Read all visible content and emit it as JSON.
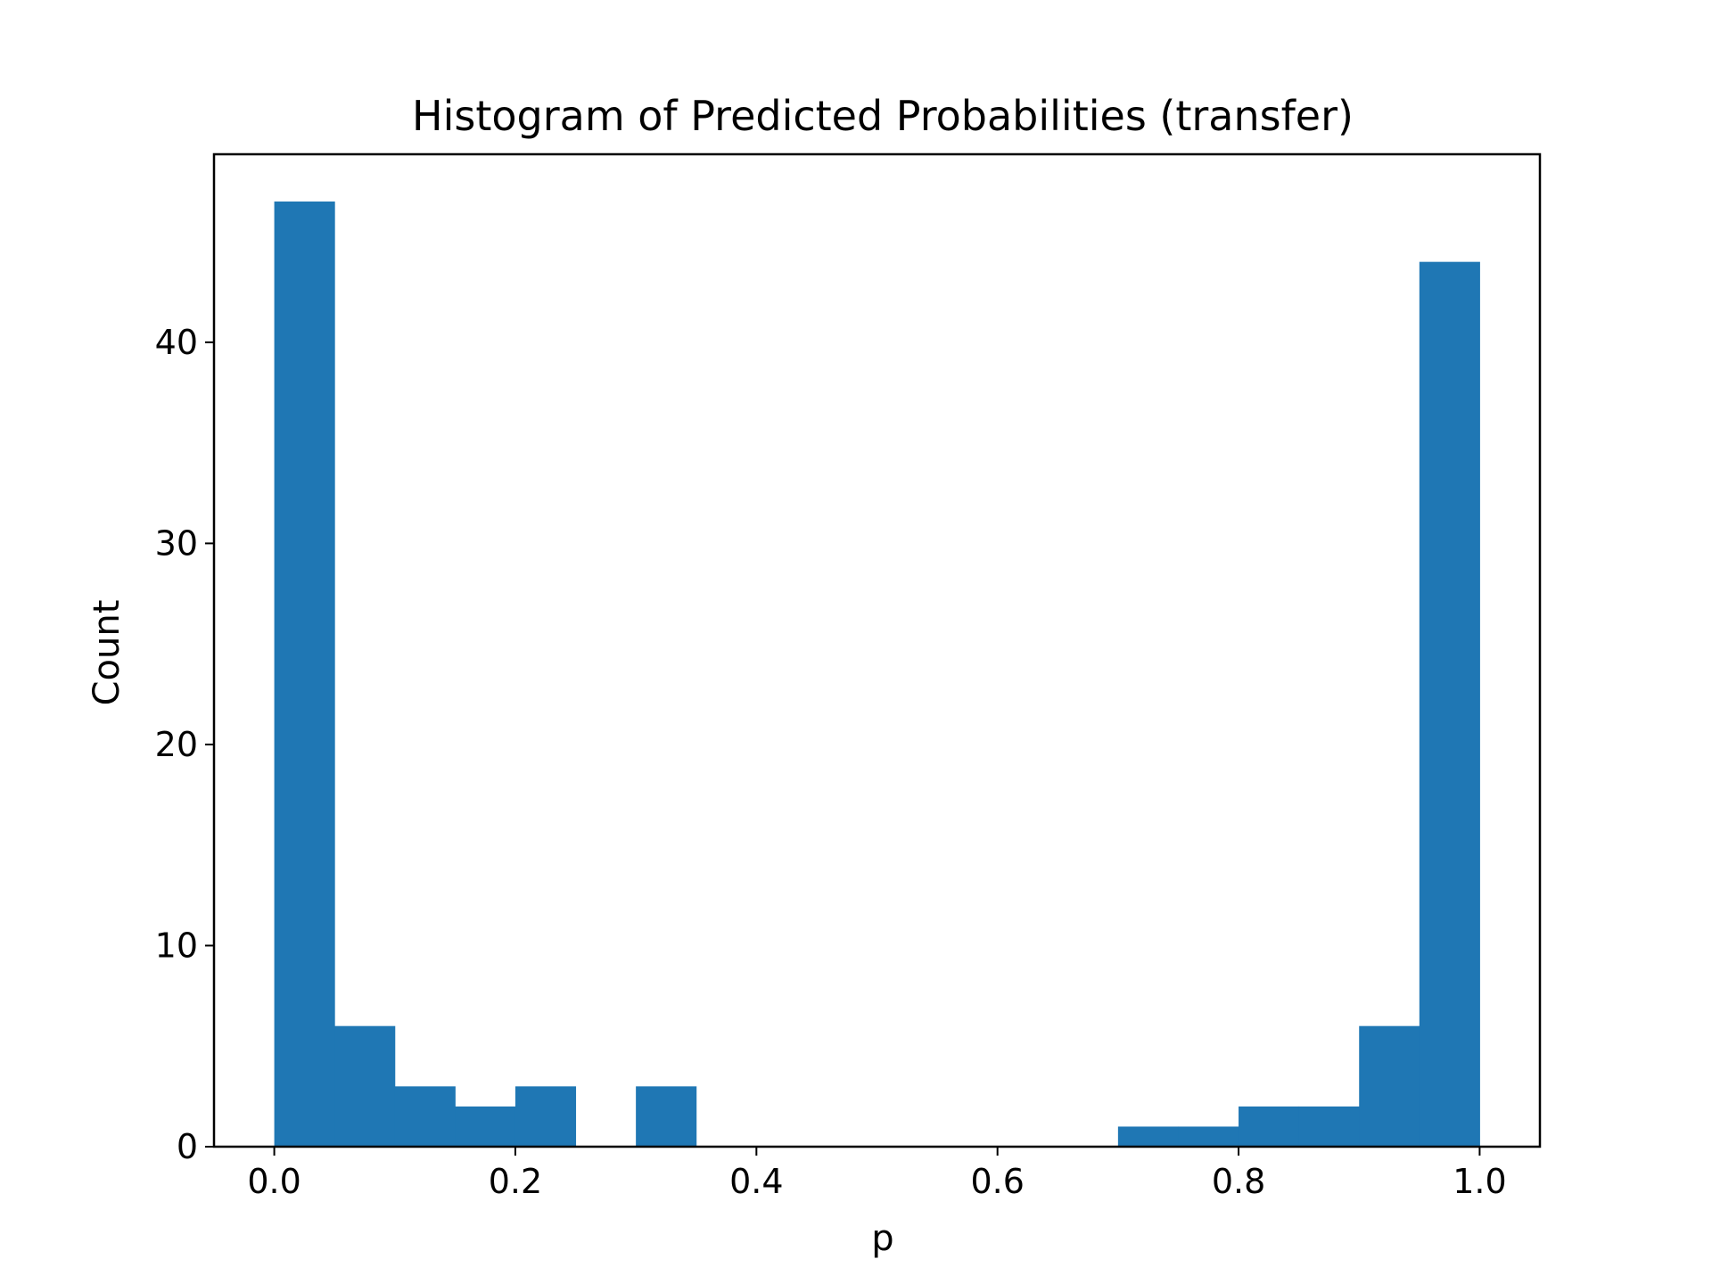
{
  "chart_data": {
    "type": "bar",
    "title": "Histogram of Predicted Probabilities (transfer)",
    "xlabel": "p",
    "ylabel": "Count",
    "bin_edges": [
      0.0,
      0.05,
      0.1,
      0.15,
      0.2,
      0.25,
      0.3,
      0.35,
      0.4,
      0.45,
      0.5,
      0.55,
      0.6,
      0.65,
      0.7,
      0.75,
      0.8,
      0.85,
      0.9,
      0.95,
      1.0
    ],
    "values": [
      47,
      6,
      3,
      2,
      3,
      0,
      3,
      0,
      0,
      0,
      0,
      0,
      0,
      0,
      1,
      1,
      2,
      2,
      6,
      44
    ],
    "xlim": [
      -0.05,
      1.05
    ],
    "ylim": [
      0,
      49.35
    ],
    "xticks": [
      0.0,
      0.2,
      0.4,
      0.6,
      0.8,
      1.0
    ],
    "xtick_labels": [
      "0.0",
      "0.2",
      "0.4",
      "0.6",
      "0.8",
      "1.0"
    ],
    "yticks": [
      0,
      10,
      20,
      30,
      40
    ],
    "ytick_labels": [
      "0",
      "10",
      "20",
      "30",
      "40"
    ],
    "grid": false,
    "colors": {
      "bar": "#1f77b4"
    }
  }
}
